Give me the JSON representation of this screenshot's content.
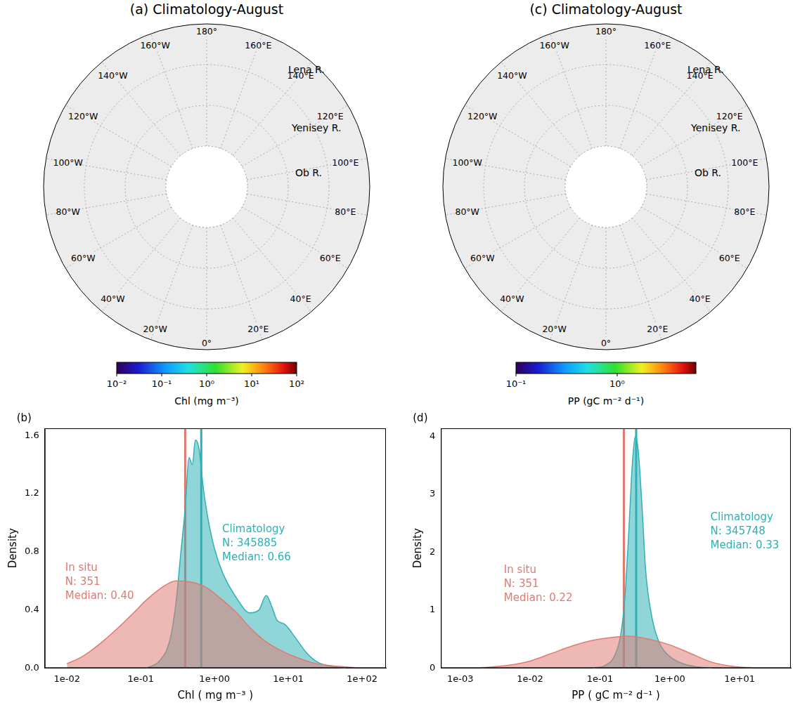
{
  "chart_data": [
    {
      "type": "map",
      "title": "(a) Climatology-August",
      "lon_labels": [
        {
          "value": 180,
          "label": "180°"
        },
        {
          "value": 160,
          "label": "160°E"
        },
        {
          "value": 140,
          "label": "140°E"
        },
        {
          "value": 120,
          "label": "120°E"
        },
        {
          "value": 100,
          "label": "100°E"
        },
        {
          "value": 80,
          "label": "80°E"
        },
        {
          "value": 60,
          "label": "60°E"
        },
        {
          "value": 40,
          "label": "40°E"
        },
        {
          "value": 20,
          "label": "20°E"
        },
        {
          "value": 0,
          "label": "0°"
        },
        {
          "value": -20,
          "label": "20°W"
        },
        {
          "value": -40,
          "label": "40°W"
        },
        {
          "value": -60,
          "label": "60°W"
        },
        {
          "value": -80,
          "label": "80°W"
        },
        {
          "value": -100,
          "label": "100°W"
        },
        {
          "value": -120,
          "label": "120°W"
        },
        {
          "value": -140,
          "label": "140°W"
        },
        {
          "value": -160,
          "label": "160°W"
        }
      ],
      "rivers": [
        "Lena R.",
        "Yenisey R.",
        "Ob R."
      ],
      "colorbar": {
        "label": "Chl (mg m⁻³)",
        "log": true,
        "range": [
          0.01,
          100
        ],
        "ticks": [
          {
            "value": 0.01,
            "label": "10⁻²"
          },
          {
            "value": 0.1,
            "label": "10⁻¹"
          },
          {
            "value": 1,
            "label": "10⁰"
          },
          {
            "value": 10,
            "label": "10¹"
          },
          {
            "value": 100,
            "label": "10²"
          }
        ]
      }
    },
    {
      "type": "map",
      "title": "(c) Climatology-August",
      "lon_labels": [
        {
          "value": 180,
          "label": "180°"
        },
        {
          "value": 160,
          "label": "160°E"
        },
        {
          "value": 140,
          "label": "140°E"
        },
        {
          "value": 120,
          "label": "120°E"
        },
        {
          "value": 100,
          "label": "100°E"
        },
        {
          "value": 80,
          "label": "80°E"
        },
        {
          "value": 60,
          "label": "60°E"
        },
        {
          "value": 40,
          "label": "40°E"
        },
        {
          "value": 20,
          "label": "20°E"
        },
        {
          "value": 0,
          "label": "0°"
        },
        {
          "value": -20,
          "label": "20°W"
        },
        {
          "value": -40,
          "label": "40°W"
        },
        {
          "value": -60,
          "label": "60°W"
        },
        {
          "value": -80,
          "label": "80°W"
        },
        {
          "value": -100,
          "label": "100°W"
        },
        {
          "value": -120,
          "label": "120°W"
        },
        {
          "value": -140,
          "label": "140°W"
        },
        {
          "value": -160,
          "label": "160°W"
        }
      ],
      "rivers": [
        "Lena R.",
        "Yenisey R.",
        "Ob R."
      ],
      "colorbar": {
        "label": "PP (gC m⁻² d⁻¹)",
        "log": true,
        "range": [
          0.1,
          6
        ],
        "ticks": [
          {
            "value": 0.1,
            "label": "10⁻¹"
          },
          {
            "value": 1,
            "label": "10⁰"
          }
        ]
      }
    },
    {
      "type": "area",
      "title": "(b)",
      "x_label": "Chl ( mg m⁻³ )",
      "y_label": "Density",
      "log": "x",
      "grid": false,
      "xlim": [
        0.005,
        210
      ],
      "xticks": [
        {
          "value": 0.01,
          "label": "1e-02"
        },
        {
          "value": 0.1,
          "label": "1e-01"
        },
        {
          "value": 1,
          "label": "1e+00"
        },
        {
          "value": 10,
          "label": "1e+01"
        },
        {
          "value": 100,
          "label": "1e+02"
        }
      ],
      "ylim": [
        0,
        1.65
      ],
      "yticks": [
        {
          "value": 0,
          "label": "0.0"
        },
        {
          "value": 0.4,
          "label": "0.4"
        },
        {
          "value": 0.8,
          "label": "0.8"
        },
        {
          "value": 1.2,
          "label": "1.2"
        },
        {
          "value": 1.6,
          "label": "1.6"
        }
      ],
      "series": [
        {
          "name": "In situ",
          "color": "#e07a72",
          "annotation": [
            "N: 351",
            "Median: 0.40"
          ],
          "median": 0.4,
          "x": [
            0.01,
            0.015,
            0.02,
            0.03,
            0.05,
            0.08,
            0.12,
            0.2,
            0.3,
            0.5,
            0.8,
            1.2,
            2,
            3,
            5,
            8,
            12,
            20,
            40,
            80
          ],
          "values": [
            0.03,
            0.07,
            0.11,
            0.18,
            0.28,
            0.38,
            0.47,
            0.56,
            0.6,
            0.59,
            0.55,
            0.48,
            0.38,
            0.28,
            0.18,
            0.12,
            0.08,
            0.04,
            0.015,
            0.003
          ]
        },
        {
          "name": "Climatology",
          "color": "#2fb0b5",
          "annotation": [
            "N: 345885",
            "Median: 0.66"
          ],
          "median": 0.66,
          "x": [
            0.12,
            0.18,
            0.25,
            0.3,
            0.35,
            0.4,
            0.45,
            0.5,
            0.55,
            0.62,
            0.7,
            0.8,
            1,
            1.3,
            2,
            3,
            4,
            5,
            6,
            7,
            9,
            12,
            18,
            25,
            40,
            60
          ],
          "values": [
            0,
            0.05,
            0.2,
            0.45,
            0.8,
            1.1,
            1.45,
            1.4,
            1.57,
            1.5,
            1.25,
            1.05,
            0.82,
            0.65,
            0.48,
            0.38,
            0.4,
            0.5,
            0.42,
            0.33,
            0.3,
            0.22,
            0.1,
            0.04,
            0.01,
            0
          ]
        }
      ]
    },
    {
      "type": "area",
      "title": "(d)",
      "x_label": "PP ( gC m⁻² d⁻¹ )",
      "y_label": "Density",
      "log": "x",
      "grid": false,
      "xlim": [
        0.00053,
        54
      ],
      "xticks": [
        {
          "value": 0.001,
          "label": "1e-03"
        },
        {
          "value": 0.01,
          "label": "1e-02"
        },
        {
          "value": 0.1,
          "label": "1e-01"
        },
        {
          "value": 1,
          "label": "1e+00"
        },
        {
          "value": 10,
          "label": "1e+01"
        }
      ],
      "ylim": [
        0,
        4.14
      ],
      "yticks": [
        0,
        1,
        2,
        3,
        4
      ],
      "series": [
        {
          "name": "In situ",
          "color": "#e07a72",
          "annotation": [
            "N: 351",
            "Median: 0.22"
          ],
          "median": 0.22,
          "x": [
            0.002,
            0.005,
            0.01,
            0.02,
            0.04,
            0.08,
            0.15,
            0.25,
            0.5,
            1,
            2,
            4,
            8,
            15
          ],
          "values": [
            0.005,
            0.05,
            0.12,
            0.25,
            0.38,
            0.48,
            0.53,
            0.55,
            0.5,
            0.4,
            0.25,
            0.1,
            0.03,
            0.005
          ]
        },
        {
          "name": "Climatology",
          "color": "#2fb0b5",
          "annotation": [
            "N: 345748",
            "Median: 0.33"
          ],
          "median": 0.33,
          "x": [
            0.08,
            0.12,
            0.16,
            0.2,
            0.23,
            0.26,
            0.29,
            0.32,
            0.35,
            0.4,
            0.45,
            0.55,
            0.7,
            1,
            1.5,
            2.5,
            4
          ],
          "values": [
            0,
            0.05,
            0.2,
            0.6,
            1.3,
            2.4,
            3.5,
            4.0,
            3.8,
            2.8,
            1.7,
            0.9,
            0.45,
            0.2,
            0.08,
            0.02,
            0
          ]
        }
      ]
    }
  ]
}
